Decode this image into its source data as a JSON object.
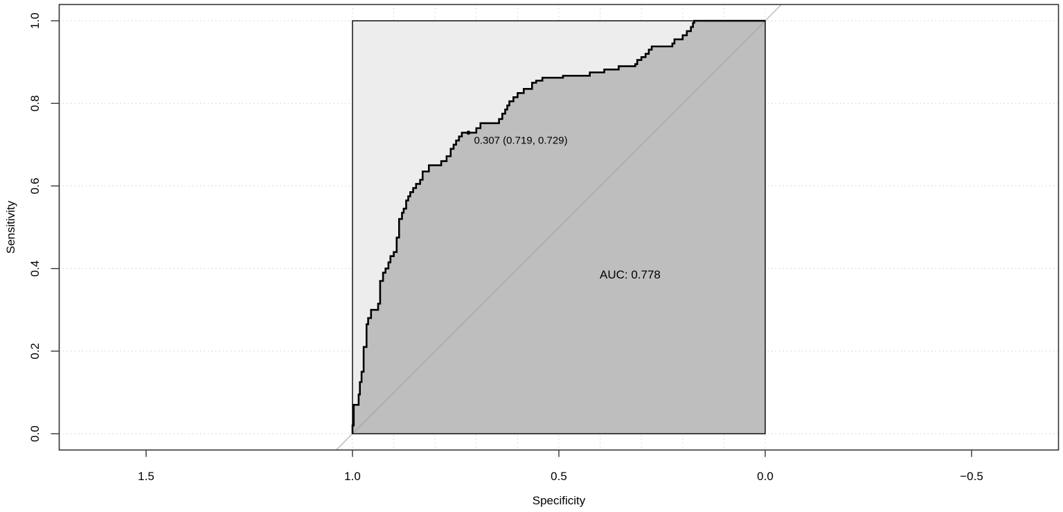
{
  "chart_data": {
    "type": "line",
    "subtype": "roc",
    "title": "",
    "xlabel": "Specificity",
    "ylabel": "Sensitivity",
    "xlim": [
      1.71,
      -0.71
    ],
    "ylim": [
      -0.04,
      1.04
    ],
    "x_reversed": true,
    "grid": true,
    "x_ticks": [
      1.5,
      1.0,
      0.5,
      0.0,
      -0.5
    ],
    "x_tick_labels": [
      "1.5",
      "1.0",
      "0.5",
      "0.0",
      "−0.5"
    ],
    "y_ticks": [
      0.0,
      0.2,
      0.4,
      0.6,
      0.8,
      1.0
    ],
    "y_tick_labels": [
      "0.0",
      "0.2",
      "0.4",
      "0.6",
      "0.8",
      "1.0"
    ],
    "auc": 0.778,
    "auc_label": "AUC: 0.778",
    "threshold_point": {
      "threshold": 0.307,
      "specificity": 0.719,
      "sensitivity": 0.729
    },
    "threshold_label": "0.307 (0.719, 0.729)",
    "colors": {
      "auc_polygon": "#bebebe",
      "max_auc_polygon": "#ededed",
      "curve": "#000000",
      "diagonal": "#a0a0a0",
      "grid": "#cccccc"
    },
    "series": [
      {
        "name": "ROC curve",
        "points": [
          [
            1.0,
            0.0
          ],
          [
            1.0,
            0.02
          ],
          [
            0.997,
            0.02
          ],
          [
            0.997,
            0.07
          ],
          [
            0.985,
            0.07
          ],
          [
            0.985,
            0.095
          ],
          [
            0.982,
            0.095
          ],
          [
            0.982,
            0.125
          ],
          [
            0.978,
            0.125
          ],
          [
            0.978,
            0.15
          ],
          [
            0.973,
            0.15
          ],
          [
            0.973,
            0.21
          ],
          [
            0.966,
            0.21
          ],
          [
            0.966,
            0.265
          ],
          [
            0.962,
            0.265
          ],
          [
            0.962,
            0.28
          ],
          [
            0.955,
            0.28
          ],
          [
            0.955,
            0.3
          ],
          [
            0.938,
            0.3
          ],
          [
            0.938,
            0.315
          ],
          [
            0.933,
            0.315
          ],
          [
            0.933,
            0.37
          ],
          [
            0.926,
            0.37
          ],
          [
            0.926,
            0.39
          ],
          [
            0.92,
            0.39
          ],
          [
            0.92,
            0.4
          ],
          [
            0.913,
            0.4
          ],
          [
            0.913,
            0.415
          ],
          [
            0.908,
            0.415
          ],
          [
            0.908,
            0.43
          ],
          [
            0.9,
            0.43
          ],
          [
            0.9,
            0.44
          ],
          [
            0.893,
            0.44
          ],
          [
            0.893,
            0.475
          ],
          [
            0.887,
            0.475
          ],
          [
            0.887,
            0.52
          ],
          [
            0.88,
            0.52
          ],
          [
            0.88,
            0.535
          ],
          [
            0.876,
            0.535
          ],
          [
            0.876,
            0.545
          ],
          [
            0.87,
            0.545
          ],
          [
            0.87,
            0.565
          ],
          [
            0.865,
            0.565
          ],
          [
            0.865,
            0.575
          ],
          [
            0.86,
            0.575
          ],
          [
            0.86,
            0.585
          ],
          [
            0.853,
            0.585
          ],
          [
            0.853,
            0.595
          ],
          [
            0.846,
            0.595
          ],
          [
            0.846,
            0.605
          ],
          [
            0.836,
            0.605
          ],
          [
            0.836,
            0.615
          ],
          [
            0.83,
            0.615
          ],
          [
            0.83,
            0.635
          ],
          [
            0.815,
            0.635
          ],
          [
            0.815,
            0.65
          ],
          [
            0.785,
            0.65
          ],
          [
            0.785,
            0.66
          ],
          [
            0.772,
            0.66
          ],
          [
            0.772,
            0.672
          ],
          [
            0.762,
            0.672
          ],
          [
            0.762,
            0.69
          ],
          [
            0.755,
            0.69
          ],
          [
            0.755,
            0.7
          ],
          [
            0.749,
            0.7
          ],
          [
            0.749,
            0.71
          ],
          [
            0.742,
            0.71
          ],
          [
            0.742,
            0.72
          ],
          [
            0.735,
            0.72
          ],
          [
            0.735,
            0.729
          ],
          [
            0.719,
            0.729
          ],
          [
            0.7,
            0.729
          ],
          [
            0.7,
            0.74
          ],
          [
            0.69,
            0.74
          ],
          [
            0.69,
            0.752
          ],
          [
            0.645,
            0.752
          ],
          [
            0.645,
            0.762
          ],
          [
            0.637,
            0.762
          ],
          [
            0.637,
            0.775
          ],
          [
            0.63,
            0.775
          ],
          [
            0.63,
            0.785
          ],
          [
            0.625,
            0.785
          ],
          [
            0.625,
            0.795
          ],
          [
            0.62,
            0.795
          ],
          [
            0.62,
            0.805
          ],
          [
            0.61,
            0.805
          ],
          [
            0.61,
            0.815
          ],
          [
            0.6,
            0.815
          ],
          [
            0.6,
            0.825
          ],
          [
            0.585,
            0.825
          ],
          [
            0.585,
            0.835
          ],
          [
            0.565,
            0.835
          ],
          [
            0.565,
            0.85
          ],
          [
            0.555,
            0.85
          ],
          [
            0.555,
            0.855
          ],
          [
            0.54,
            0.855
          ],
          [
            0.54,
            0.862
          ],
          [
            0.49,
            0.862
          ],
          [
            0.49,
            0.867
          ],
          [
            0.425,
            0.867
          ],
          [
            0.425,
            0.875
          ],
          [
            0.39,
            0.875
          ],
          [
            0.39,
            0.882
          ],
          [
            0.355,
            0.882
          ],
          [
            0.355,
            0.89
          ],
          [
            0.315,
            0.89
          ],
          [
            0.315,
            0.895
          ],
          [
            0.31,
            0.895
          ],
          [
            0.31,
            0.905
          ],
          [
            0.3,
            0.905
          ],
          [
            0.3,
            0.912
          ],
          [
            0.29,
            0.912
          ],
          [
            0.29,
            0.92
          ],
          [
            0.282,
            0.92
          ],
          [
            0.282,
            0.93
          ],
          [
            0.275,
            0.93
          ],
          [
            0.275,
            0.938
          ],
          [
            0.225,
            0.938
          ],
          [
            0.225,
            0.945
          ],
          [
            0.22,
            0.945
          ],
          [
            0.22,
            0.955
          ],
          [
            0.2,
            0.955
          ],
          [
            0.2,
            0.965
          ],
          [
            0.19,
            0.965
          ],
          [
            0.19,
            0.975
          ],
          [
            0.18,
            0.975
          ],
          [
            0.18,
            0.985
          ],
          [
            0.175,
            0.985
          ],
          [
            0.175,
            0.995
          ],
          [
            0.172,
            0.995
          ],
          [
            0.172,
            1.0
          ],
          [
            0.0,
            1.0
          ]
        ]
      }
    ]
  }
}
